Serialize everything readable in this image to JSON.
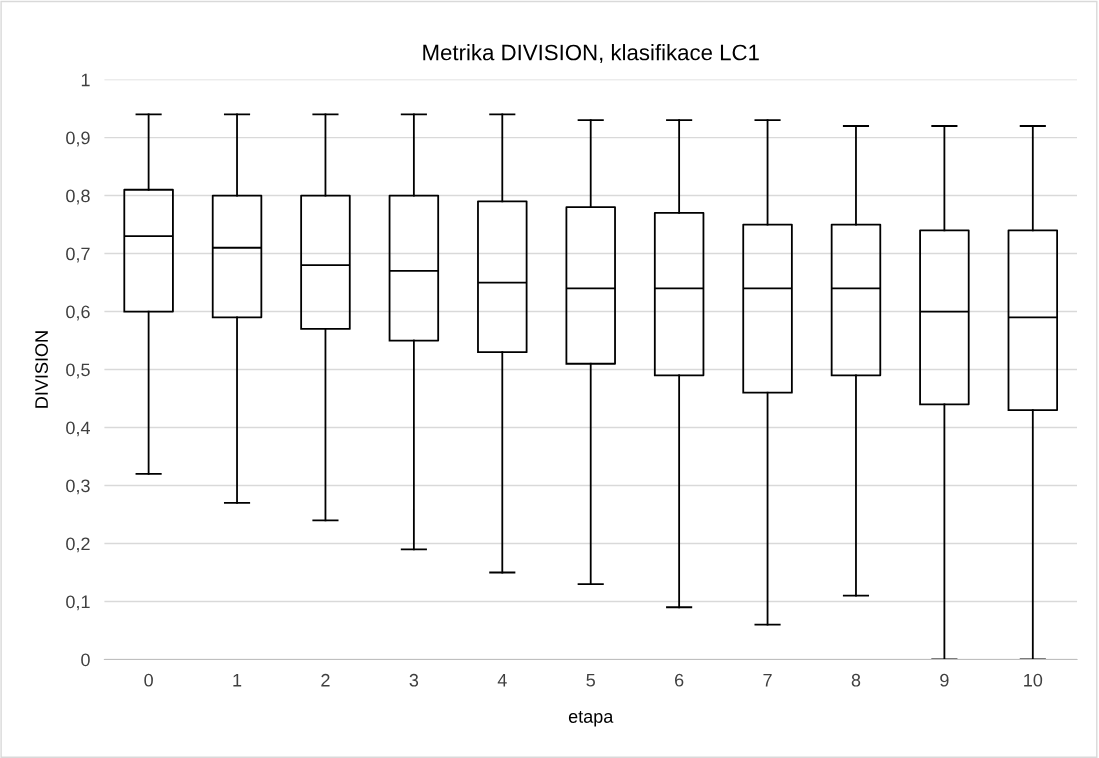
{
  "chart_data": {
    "type": "box",
    "title": "Metrika DIVISION, klasifikace LC1",
    "xlabel": "etapa",
    "ylabel": "DIVISION",
    "categories": [
      "0",
      "1",
      "2",
      "3",
      "4",
      "5",
      "6",
      "7",
      "8",
      "9",
      "10"
    ],
    "boxes": [
      {
        "low": 0.32,
        "q1": 0.6,
        "median": 0.73,
        "q3": 0.81,
        "high": 0.94
      },
      {
        "low": 0.27,
        "q1": 0.59,
        "median": 0.71,
        "q3": 0.8,
        "high": 0.94
      },
      {
        "low": 0.24,
        "q1": 0.57,
        "median": 0.68,
        "q3": 0.8,
        "high": 0.94
      },
      {
        "low": 0.19,
        "q1": 0.55,
        "median": 0.67,
        "q3": 0.8,
        "high": 0.94
      },
      {
        "low": 0.15,
        "q1": 0.53,
        "median": 0.65,
        "q3": 0.79,
        "high": 0.94
      },
      {
        "low": 0.13,
        "q1": 0.51,
        "median": 0.64,
        "q3": 0.78,
        "high": 0.93
      },
      {
        "low": 0.09,
        "q1": 0.49,
        "median": 0.64,
        "q3": 0.77,
        "high": 0.93
      },
      {
        "low": 0.06,
        "q1": 0.46,
        "median": 0.64,
        "q3": 0.75,
        "high": 0.93
      },
      {
        "low": 0.11,
        "q1": 0.49,
        "median": 0.64,
        "q3": 0.75,
        "high": 0.92
      },
      {
        "low": 0.0,
        "q1": 0.44,
        "median": 0.6,
        "q3": 0.74,
        "high": 0.92
      },
      {
        "low": 0.0,
        "q1": 0.43,
        "median": 0.59,
        "q3": 0.74,
        "high": 0.92
      }
    ],
    "color": "#000000",
    "ylim": [
      0,
      1
    ],
    "yticks": [
      0,
      {
        "value": 0.1,
        "label": "0,1"
      },
      {
        "value": 0.2,
        "label": "0,2"
      },
      {
        "value": 0.3,
        "label": "0,3"
      },
      {
        "value": 0.4,
        "label": "0,4"
      },
      {
        "value": 0.5,
        "label": "0,5"
      },
      {
        "value": 0.6,
        "label": "0,6"
      },
      {
        "value": 0.7,
        "label": "0,7"
      },
      {
        "value": 0.8,
        "label": "0,8"
      },
      {
        "value": 0.9,
        "label": "0,9"
      },
      1
    ],
    "grid": "y"
  }
}
